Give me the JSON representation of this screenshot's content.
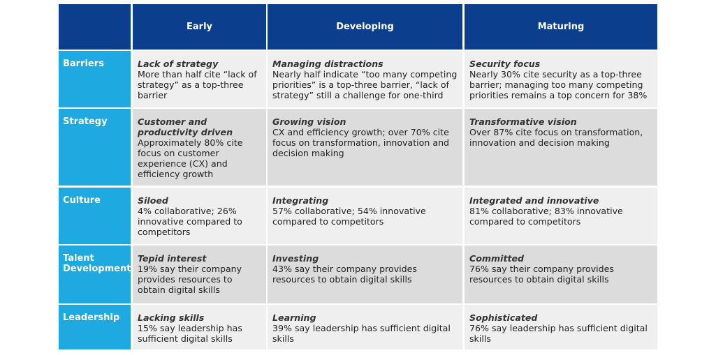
{
  "header": {
    "columns": [
      "Early",
      "Developing",
      "Maturing"
    ]
  },
  "rows": [
    {
      "label": "Barriers",
      "cells": [
        {
          "title": "Lack of strategy",
          "text": "More than half cite “lack of strategy” as a top-three barrier"
        },
        {
          "title": "Managing distractions",
          "text": "Nearly half indicate “too many competing priorities” is a top-three barrier, “lack of strategy” still a challenge for one-third"
        },
        {
          "title": "Security focus",
          "text": "Nearly 30% cite security as a top-three barrier; managing too many competing priorities remains a top concern for 38%"
        }
      ]
    },
    {
      "label": "Strategy",
      "cells": [
        {
          "title": "Customer and productivity driven",
          "text": "Approximately 80% cite focus on customer experience (CX) and efficiency growth"
        },
        {
          "title": "Growing vision",
          "text": "CX and efficiency growth; over 70% cite focus on transformation, innovation and decision making"
        },
        {
          "title": "Transformative vision",
          "text": "Over 87% cite focus on transformation, innovation and decision making"
        }
      ]
    },
    {
      "label": "Culture",
      "cells": [
        {
          "title": "Siloed",
          "text": "4% collaborative; 26% innovative compared to competitors"
        },
        {
          "title": "Integrating",
          "text": "57% collaborative; 54% innovative compared to competitors"
        },
        {
          "title": "Integrated and innovative",
          "text": "81% collaborative; 83% innovative compared to competitors"
        }
      ]
    },
    {
      "label": "Talent Development",
      "cells": [
        {
          "title": "Tepid interest",
          "text": "19% say their company provides resources to obtain digital skills"
        },
        {
          "title": "Investing",
          "text": "43% say their company provides resources to obtain digital skills"
        },
        {
          "title": "Committed",
          "text": "76% say their company provides resources to obtain digital skills"
        }
      ]
    },
    {
      "label": "Leadership",
      "cells": [
        {
          "title": "Lacking skills",
          "text": "15% say leadership has sufficient digital skills"
        },
        {
          "title": "Learning",
          "text": "39% say leadership has sufficient digital skills"
        },
        {
          "title": "Sophisticated",
          "text": "76% say leadership has sufficient digital skills"
        }
      ]
    }
  ]
}
